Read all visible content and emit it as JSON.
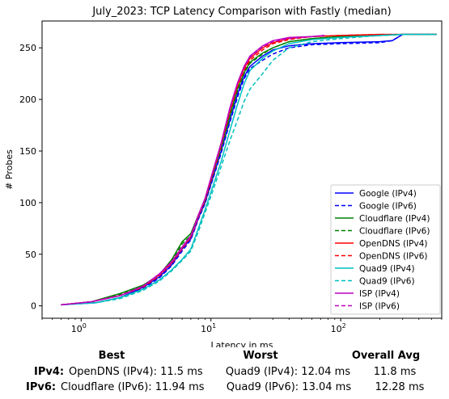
{
  "chart_data": {
    "type": "line",
    "title": "July_2023: TCP Latency Comparison with Fastly (median)",
    "xlabel": "Latency in ms",
    "ylabel": "# Probes",
    "xscale": "log",
    "xlim": [
      0.5,
      600
    ],
    "ylim": [
      -12,
      276
    ],
    "x_ticks": [
      {
        "value": 1,
        "base": "10",
        "exp": "0"
      },
      {
        "value": 10,
        "base": "10",
        "exp": "1"
      },
      {
        "value": 100,
        "base": "10",
        "exp": "2"
      }
    ],
    "y_ticks": [
      0,
      50,
      100,
      150,
      200,
      250
    ],
    "grid": false,
    "legend_position": "lower-right",
    "series": [
      {
        "name": "Google (IPv4)",
        "color": "#0000ff",
        "style": "solid",
        "points": [
          [
            0.7,
            1
          ],
          [
            1.3,
            3
          ],
          [
            2,
            8
          ],
          [
            3,
            18
          ],
          [
            4,
            28
          ],
          [
            5,
            40
          ],
          [
            6,
            55
          ],
          [
            7,
            65
          ],
          [
            8,
            85
          ],
          [
            9,
            100
          ],
          [
            10,
            118
          ],
          [
            12,
            150
          ],
          [
            14,
            180
          ],
          [
            16,
            205
          ],
          [
            18,
            222
          ],
          [
            20,
            232
          ],
          [
            25,
            242
          ],
          [
            30,
            248
          ],
          [
            40,
            252
          ],
          [
            60,
            254
          ],
          [
            100,
            255
          ],
          [
            200,
            256
          ],
          [
            250,
            257
          ],
          [
            300,
            263
          ],
          [
            550,
            263
          ]
        ]
      },
      {
        "name": "Google (IPv6)",
        "color": "#0000ff",
        "style": "dashed",
        "points": [
          [
            0.7,
            1
          ],
          [
            1.3,
            3
          ],
          [
            2,
            8
          ],
          [
            3,
            17
          ],
          [
            4,
            27
          ],
          [
            5,
            39
          ],
          [
            6,
            53
          ],
          [
            7,
            64
          ],
          [
            8,
            84
          ],
          [
            9,
            99
          ],
          [
            10,
            117
          ],
          [
            12,
            148
          ],
          [
            14,
            178
          ],
          [
            16,
            202
          ],
          [
            18,
            220
          ],
          [
            20,
            230
          ],
          [
            25,
            238
          ],
          [
            30,
            244
          ],
          [
            40,
            250
          ],
          [
            60,
            253
          ],
          [
            100,
            254
          ],
          [
            200,
            255
          ],
          [
            250,
            257
          ],
          [
            300,
            263
          ],
          [
            550,
            263
          ]
        ]
      },
      {
        "name": "Cloudflare (IPv4)",
        "color": "#008000",
        "style": "solid",
        "points": [
          [
            0.7,
            1
          ],
          [
            1.2,
            4
          ],
          [
            2,
            12
          ],
          [
            3,
            20
          ],
          [
            4,
            30
          ],
          [
            5,
            45
          ],
          [
            6,
            62
          ],
          [
            7,
            70
          ],
          [
            8,
            88
          ],
          [
            9,
            102
          ],
          [
            10,
            122
          ],
          [
            12,
            155
          ],
          [
            14,
            185
          ],
          [
            16,
            210
          ],
          [
            18,
            226
          ],
          [
            20,
            236
          ],
          [
            25,
            245
          ],
          [
            30,
            250
          ],
          [
            40,
            256
          ],
          [
            60,
            259
          ],
          [
            100,
            261
          ],
          [
            200,
            262
          ],
          [
            300,
            263
          ],
          [
            550,
            263
          ]
        ]
      },
      {
        "name": "Cloudflare (IPv6)",
        "color": "#008000",
        "style": "dashed",
        "points": [
          [
            0.7,
            1
          ],
          [
            1.2,
            4
          ],
          [
            2,
            11
          ],
          [
            3,
            19
          ],
          [
            4,
            29
          ],
          [
            5,
            43
          ],
          [
            6,
            60
          ],
          [
            7,
            68
          ],
          [
            8,
            86
          ],
          [
            9,
            101
          ],
          [
            10,
            120
          ],
          [
            12,
            152
          ],
          [
            14,
            183
          ],
          [
            16,
            208
          ],
          [
            18,
            225
          ],
          [
            20,
            235
          ],
          [
            25,
            244
          ],
          [
            30,
            250
          ],
          [
            40,
            256
          ],
          [
            60,
            259
          ],
          [
            100,
            261
          ],
          [
            200,
            262
          ],
          [
            300,
            263
          ],
          [
            550,
            263
          ]
        ]
      },
      {
        "name": "OpenDNS (IPv4)",
        "color": "#ff0000",
        "style": "solid",
        "points": [
          [
            0.7,
            1
          ],
          [
            1.2,
            4
          ],
          [
            2,
            10
          ],
          [
            3,
            19
          ],
          [
            4,
            30
          ],
          [
            5,
            42
          ],
          [
            6,
            56
          ],
          [
            7,
            67
          ],
          [
            8,
            87
          ],
          [
            9,
            103
          ],
          [
            10,
            123
          ],
          [
            12,
            157
          ],
          [
            14,
            190
          ],
          [
            16,
            214
          ],
          [
            18,
            230
          ],
          [
            20,
            240
          ],
          [
            25,
            250
          ],
          [
            30,
            255
          ],
          [
            40,
            259
          ],
          [
            60,
            261
          ],
          [
            100,
            262
          ],
          [
            200,
            263
          ],
          [
            550,
            263
          ]
        ]
      },
      {
        "name": "OpenDNS (IPv6)",
        "color": "#ff0000",
        "style": "dashed",
        "points": [
          [
            0.7,
            1
          ],
          [
            1.2,
            4
          ],
          [
            2,
            10
          ],
          [
            3,
            18
          ],
          [
            4,
            29
          ],
          [
            5,
            41
          ],
          [
            6,
            55
          ],
          [
            7,
            66
          ],
          [
            8,
            86
          ],
          [
            9,
            102
          ],
          [
            10,
            121
          ],
          [
            12,
            155
          ],
          [
            14,
            188
          ],
          [
            16,
            212
          ],
          [
            18,
            228
          ],
          [
            20,
            238
          ],
          [
            25,
            248
          ],
          [
            30,
            254
          ],
          [
            40,
            258
          ],
          [
            60,
            261
          ],
          [
            100,
            262
          ],
          [
            200,
            263
          ],
          [
            550,
            263
          ]
        ]
      },
      {
        "name": "Quad9 (IPv4)",
        "color": "#00bfbf",
        "style": "solid",
        "points": [
          [
            0.7,
            1
          ],
          [
            1.3,
            3
          ],
          [
            2,
            8
          ],
          [
            3,
            16
          ],
          [
            4,
            25
          ],
          [
            5,
            35
          ],
          [
            6,
            45
          ],
          [
            7,
            55
          ],
          [
            8,
            75
          ],
          [
            9,
            93
          ],
          [
            10,
            110
          ],
          [
            12,
            140
          ],
          [
            14,
            170
          ],
          [
            16,
            195
          ],
          [
            18,
            215
          ],
          [
            20,
            228
          ],
          [
            25,
            240
          ],
          [
            30,
            247
          ],
          [
            40,
            254
          ],
          [
            60,
            258
          ],
          [
            100,
            260
          ],
          [
            200,
            262
          ],
          [
            300,
            263
          ],
          [
            550,
            263
          ]
        ]
      },
      {
        "name": "Quad9 (IPv6)",
        "color": "#00bfbf",
        "style": "dashed",
        "points": [
          [
            0.7,
            1
          ],
          [
            1.3,
            3
          ],
          [
            2,
            7
          ],
          [
            3,
            15
          ],
          [
            4,
            24
          ],
          [
            5,
            34
          ],
          [
            6,
            44
          ],
          [
            7,
            53
          ],
          [
            8,
            72
          ],
          [
            9,
            90
          ],
          [
            10,
            106
          ],
          [
            12,
            135
          ],
          [
            14,
            160
          ],
          [
            16,
            180
          ],
          [
            18,
            198
          ],
          [
            20,
            210
          ],
          [
            25,
            225
          ],
          [
            30,
            238
          ],
          [
            40,
            250
          ],
          [
            60,
            256
          ],
          [
            100,
            259
          ],
          [
            200,
            262
          ],
          [
            300,
            263
          ],
          [
            550,
            263
          ]
        ]
      },
      {
        "name": "ISP (IPv4)",
        "color": "#bf00bf",
        "style": "solid",
        "points": [
          [
            0.7,
            1
          ],
          [
            1.2,
            4
          ],
          [
            2,
            10
          ],
          [
            3,
            19
          ],
          [
            4,
            31
          ],
          [
            5,
            43
          ],
          [
            6,
            57
          ],
          [
            7,
            68
          ],
          [
            8,
            88
          ],
          [
            9,
            104
          ],
          [
            10,
            124
          ],
          [
            12,
            158
          ],
          [
            14,
            192
          ],
          [
            16,
            216
          ],
          [
            18,
            232
          ],
          [
            20,
            242
          ],
          [
            25,
            252
          ],
          [
            30,
            257
          ],
          [
            40,
            260
          ],
          [
            60,
            261
          ],
          [
            75,
            262
          ]
        ]
      },
      {
        "name": "ISP (IPv6)",
        "color": "#bf00bf",
        "style": "dashed",
        "points": [
          [
            0.7,
            1
          ],
          [
            1.2,
            4
          ],
          [
            2,
            10
          ],
          [
            3,
            19
          ],
          [
            4,
            30
          ],
          [
            5,
            42
          ],
          [
            6,
            56
          ],
          [
            7,
            67
          ],
          [
            8,
            87
          ],
          [
            9,
            103
          ],
          [
            10,
            123
          ],
          [
            12,
            157
          ],
          [
            14,
            191
          ],
          [
            16,
            215
          ],
          [
            18,
            231
          ],
          [
            20,
            241
          ],
          [
            25,
            251
          ],
          [
            30,
            256
          ],
          [
            40,
            259
          ],
          [
            60,
            261
          ],
          [
            75,
            262
          ]
        ]
      }
    ]
  },
  "summary": {
    "headers": {
      "best": "Best",
      "worst": "Worst",
      "avg": "Overall Avg"
    },
    "rows": [
      {
        "label": "IPv4:",
        "best": "OpenDNS (IPv4): 11.5 ms",
        "worst": "Quad9 (IPv4): 12.04 ms",
        "avg": "11.8 ms"
      },
      {
        "label": "IPv6:",
        "best": "Cloudflare (IPv6): 11.94 ms",
        "worst": "Quad9 (IPv6): 13.04 ms",
        "avg": "12.28 ms"
      }
    ]
  }
}
